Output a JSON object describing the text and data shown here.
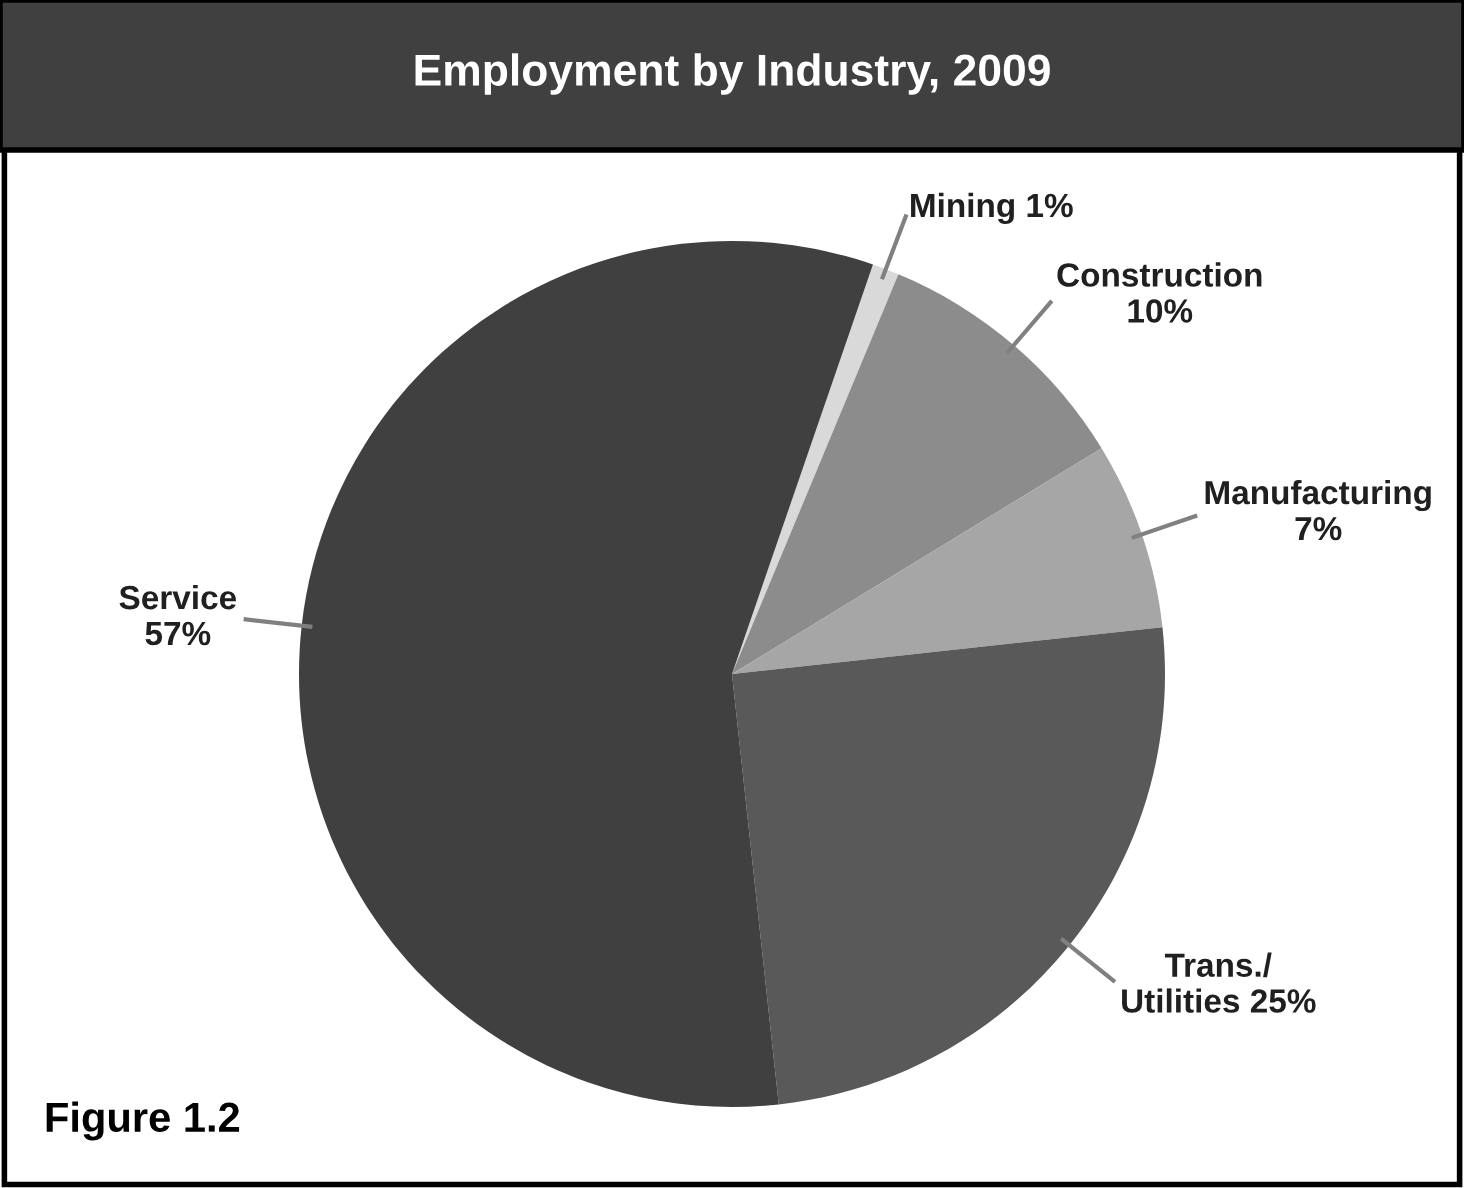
{
  "chart_data": {
    "type": "pie",
    "title": "Employment by Industry, 2009",
    "categories": [
      "Mining",
      "Construction",
      "Manufacturing",
      "Trans./\nUtilities",
      "Service"
    ],
    "values": [
      1,
      10,
      7,
      25,
      57
    ],
    "value_labels": [
      "1%",
      "10%",
      "7%",
      "25%",
      "57%"
    ],
    "colors": [
      "#d9d9d9",
      "#8c8c8c",
      "#a6a6a6",
      "#595959",
      "#404040"
    ],
    "annotations": [
      "Figure 1.2"
    ]
  }
}
